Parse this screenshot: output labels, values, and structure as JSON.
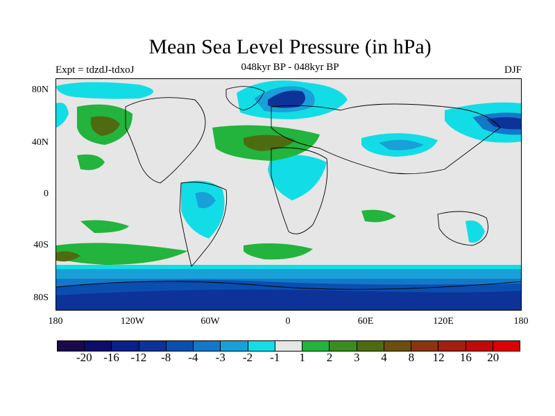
{
  "title": "Mean Sea Level Pressure (in hPa)",
  "subtitle": "048kyr BP - 048kyr BP",
  "experiment": "Expt = tdzdJ-tdxoJ",
  "season": "DJF",
  "lat_labels": [
    "80N",
    "40N",
    "0",
    "40S",
    "80S"
  ],
  "lon_labels": [
    "180",
    "120W",
    "60W",
    "0",
    "60E",
    "120E",
    "180"
  ],
  "colorbar": {
    "labels": [
      "-20",
      "-16",
      "-12",
      "-8",
      "-4",
      "-3",
      "-2",
      "-1",
      "1",
      "2",
      "3",
      "4",
      "8",
      "12",
      "16",
      "20"
    ],
    "colors": [
      "#1a0a4d",
      "#0d0d6b",
      "#0a1f8a",
      "#0d3399",
      "#0a4fb0",
      "#1478c8",
      "#1aa0d8",
      "#12dde6",
      "#e6e6e6",
      "#22b43c",
      "#3a8c1e",
      "#4f6b12",
      "#6b4f0e",
      "#8a3510",
      "#a21e0e",
      "#c00a0a",
      "#dc0000"
    ]
  },
  "chart_data": {
    "type": "heatmap",
    "title": "Mean Sea Level Pressure (in hPa)",
    "subtitle": "048kyr BP - 048kyr BP",
    "xlim": [
      -180,
      180
    ],
    "ylim": [
      -90,
      90
    ],
    "contour_levels": [
      -20,
      -16,
      -12,
      -8,
      -4,
      -3,
      -2,
      -1,
      1,
      2,
      3,
      4,
      8,
      12,
      16,
      20
    ]
  }
}
